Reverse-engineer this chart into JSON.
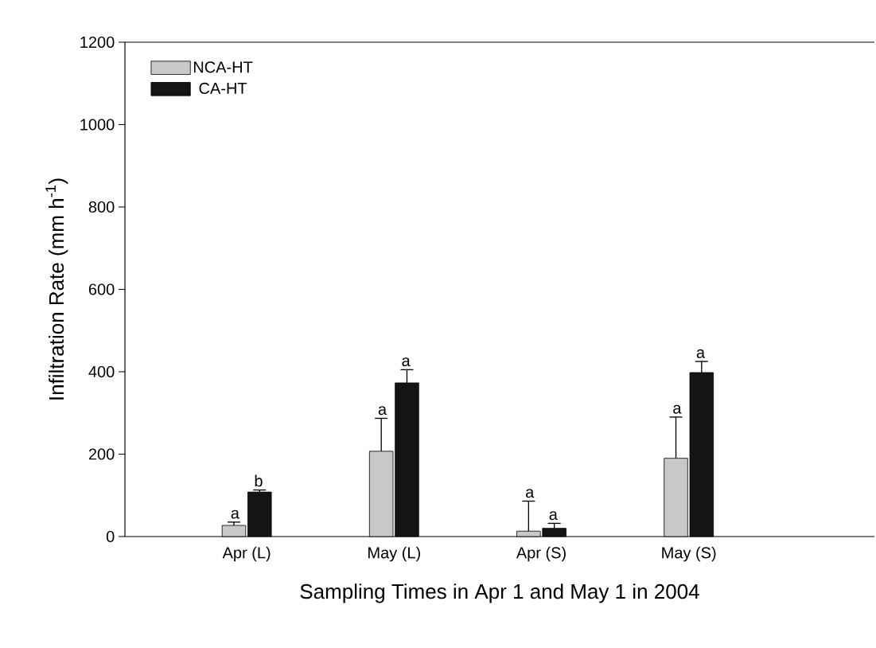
{
  "chart_data": {
    "type": "bar",
    "xlabel": "Sampling Times in Apr 1 and May 1 in 2004",
    "ylabel": "Infiltration Rate (mm h$^{-1}$)",
    "categories": [
      "Apr (L)",
      "May (L)",
      "Apr (S)",
      "May (S)"
    ],
    "series": [
      {
        "name": "NCA-HT",
        "color": "#c8c8c8",
        "values": [
          27,
          207,
          13,
          190
        ],
        "errors": [
          8,
          80,
          73,
          100
        ]
      },
      {
        "name": "CA-HT",
        "color": "#141414",
        "values": [
          108,
          373,
          20,
          398
        ],
        "errors": [
          5,
          32,
          12,
          27
        ]
      }
    ],
    "ylim": [
      0,
      1200
    ],
    "yticks": [
      0,
      200,
      400,
      600,
      800,
      1000,
      1200
    ],
    "legend": "top left",
    "grid": false,
    "annotations": [
      "a",
      "b",
      "a",
      "a",
      "a",
      "a",
      "a",
      "a"
    ]
  }
}
